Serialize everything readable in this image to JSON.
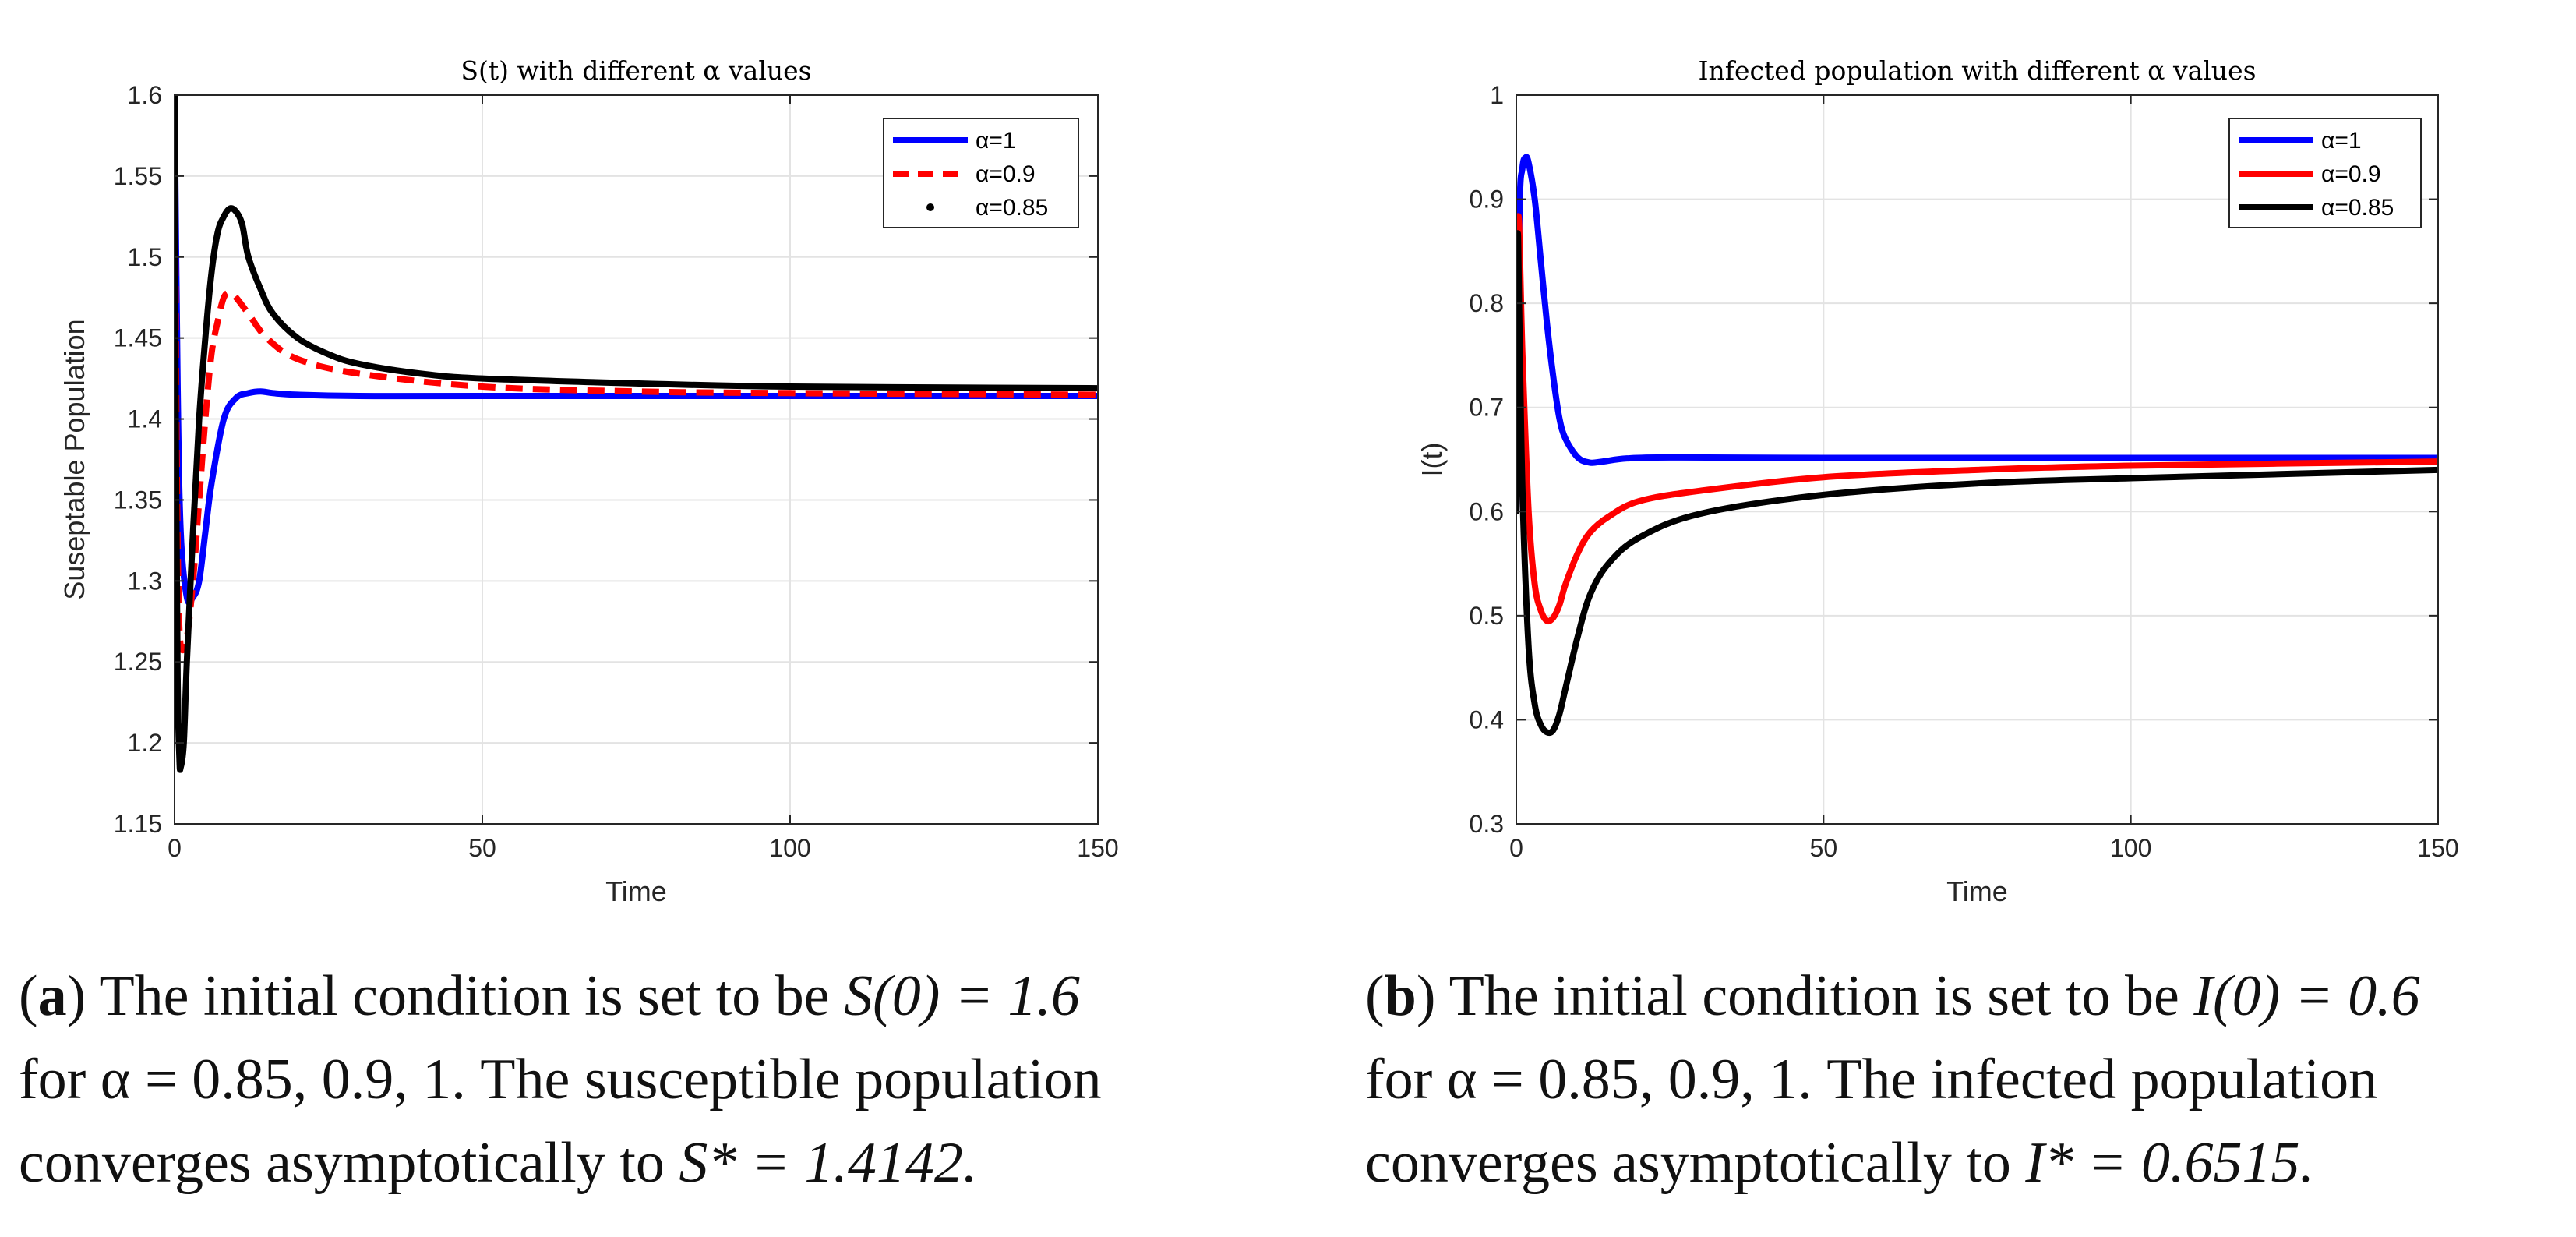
{
  "chart_data": [
    {
      "type": "line",
      "title": "S(t) with different α values",
      "xlabel": "Time",
      "ylabel": "Suseptable Population",
      "xlim": [
        0,
        150
      ],
      "ylim": [
        1.15,
        1.6
      ],
      "xticks": [
        0,
        50,
        100,
        150
      ],
      "yticks": [
        1.15,
        1.2,
        1.25,
        1.3,
        1.35,
        1.4,
        1.45,
        1.5,
        1.55,
        1.6
      ],
      "grid": true,
      "legend_position": "top-right",
      "series": [
        {
          "name": "α=1",
          "color": "#0000ff",
          "style": "solid",
          "x": [
            0,
            0.5,
            1,
            2,
            3,
            4,
            5,
            6,
            8,
            10,
            12,
            14,
            16,
            20,
            30,
            50,
            100,
            150
          ],
          "y": [
            1.6,
            1.42,
            1.33,
            1.29,
            1.29,
            1.3,
            1.33,
            1.36,
            1.4,
            1.413,
            1.416,
            1.417,
            1.416,
            1.415,
            1.4142,
            1.4142,
            1.4142,
            1.4142
          ]
        },
        {
          "name": "α=0.9",
          "color": "#ff0000",
          "style": "dashed",
          "x": [
            0,
            0.3,
            0.6,
            1,
            2,
            3,
            4,
            5,
            6,
            7,
            8,
            9,
            10,
            12,
            15,
            20,
            30,
            50,
            75,
            100,
            150
          ],
          "y": [
            1.6,
            1.4,
            1.3,
            1.26,
            1.265,
            1.3,
            1.35,
            1.4,
            1.44,
            1.46,
            1.475,
            1.478,
            1.475,
            1.465,
            1.45,
            1.437,
            1.428,
            1.42,
            1.417,
            1.416,
            1.415
          ]
        },
        {
          "name": "α=0.85",
          "color": "#000000",
          "style": "solid",
          "x": [
            0,
            0.2,
            0.5,
            0.8,
            1,
            1.5,
            2,
            3,
            4,
            5,
            6,
            7,
            8,
            9,
            10,
            11,
            12,
            14,
            16,
            20,
            25,
            30,
            40,
            50,
            75,
            100,
            150
          ],
          "y": [
            1.6,
            1.4,
            1.24,
            1.19,
            1.185,
            1.2,
            1.25,
            1.33,
            1.4,
            1.45,
            1.49,
            1.515,
            1.525,
            1.53,
            1.528,
            1.52,
            1.5,
            1.48,
            1.465,
            1.45,
            1.44,
            1.434,
            1.428,
            1.425,
            1.422,
            1.42,
            1.419
          ]
        }
      ]
    },
    {
      "type": "line",
      "title": "Infected population with different α values",
      "xlabel": "Time",
      "ylabel": "I(t)",
      "xlim": [
        0,
        150
      ],
      "ylim": [
        0.3,
        1.0
      ],
      "xticks": [
        0,
        50,
        100,
        150
      ],
      "yticks": [
        0.3,
        0.4,
        0.5,
        0.6,
        0.7,
        0.8,
        0.9,
        1
      ],
      "grid": true,
      "legend_position": "top-right",
      "series": [
        {
          "name": "α=1",
          "color": "#0000ff",
          "style": "solid",
          "x": [
            0,
            0.5,
            1,
            1.5,
            2,
            3,
            4,
            5,
            6,
            7,
            8,
            10,
            12,
            14,
            18,
            25,
            50,
            100,
            150
          ],
          "y": [
            0.6,
            0.88,
            0.93,
            0.94,
            0.935,
            0.9,
            0.84,
            0.78,
            0.73,
            0.69,
            0.67,
            0.652,
            0.647,
            0.648,
            0.651,
            0.652,
            0.6515,
            0.6515,
            0.6515
          ]
        },
        {
          "name": "α=0.9",
          "color": "#ff0000",
          "style": "solid",
          "x": [
            0,
            0.3,
            1,
            2,
            3,
            4,
            5,
            6,
            7,
            8,
            10,
            12,
            15,
            20,
            30,
            50,
            75,
            100,
            150
          ],
          "y": [
            0.6,
            0.88,
            0.75,
            0.6,
            0.53,
            0.505,
            0.495,
            0.498,
            0.51,
            0.53,
            0.56,
            0.58,
            0.595,
            0.61,
            0.62,
            0.633,
            0.64,
            0.644,
            0.648
          ]
        },
        {
          "name": "α=0.85",
          "color": "#000000",
          "style": "solid",
          "x": [
            0,
            0.2,
            0.5,
            1,
            2,
            3,
            4,
            5,
            6,
            7,
            8,
            10,
            12,
            15,
            20,
            30,
            50,
            75,
            100,
            150
          ],
          "y": [
            0.6,
            0.86,
            0.78,
            0.62,
            0.47,
            0.415,
            0.395,
            0.388,
            0.39,
            0.405,
            0.43,
            0.48,
            0.52,
            0.55,
            0.575,
            0.598,
            0.616,
            0.627,
            0.632,
            0.64
          ]
        }
      ]
    }
  ],
  "captions": [
    {
      "label": "a",
      "line1_pre": "The initial condition is set to be ",
      "line1_math": "S(0) = 1.6",
      "line2": "for α = 0.85, 0.9, 1. The susceptible population",
      "line3_pre": "converges asymptotically to ",
      "line3_math": "S* = 1.4142."
    },
    {
      "label": "b",
      "line1_pre": "The initial condition is set to be ",
      "line1_math": "I(0) = 0.6",
      "line2": "for α = 0.85, 0.9, 1.  The infected population",
      "line3_pre": "converges asymptotically to ",
      "line3_math": "I* = 0.6515."
    }
  ]
}
